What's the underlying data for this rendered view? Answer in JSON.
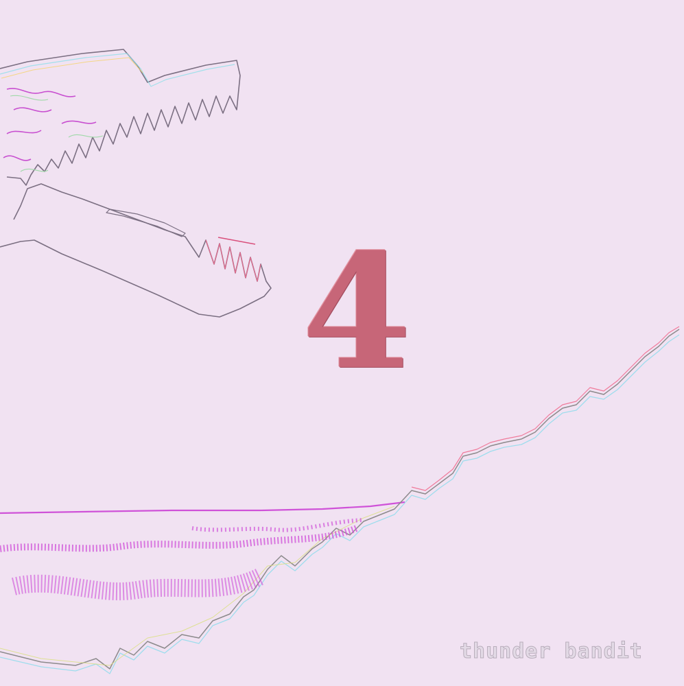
{
  "cover": {
    "number": "4",
    "artist": "thunder bandit",
    "background_color": "#f1e2f2",
    "number_color": "#c76678",
    "illustration": "gator-skull-outline",
    "landscape": "mountain-ridge-outline"
  }
}
